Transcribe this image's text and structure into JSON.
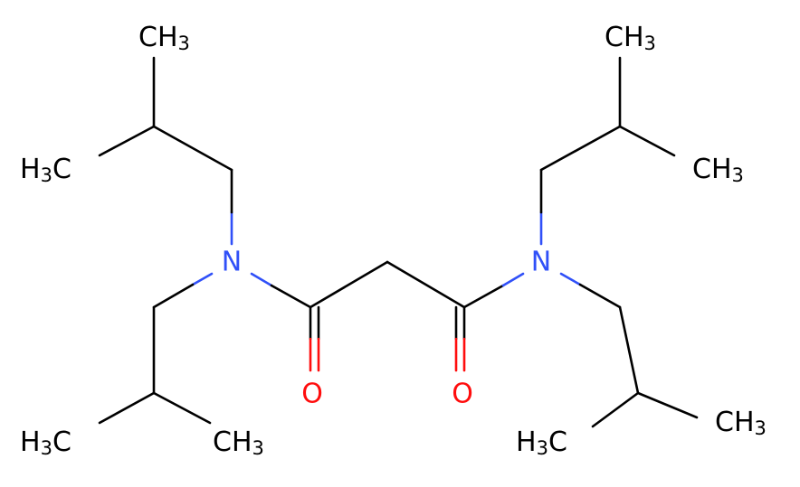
{
  "atoms": {
    "nitrogen_left": "N",
    "nitrogen_right": "N",
    "oxygen_left": "O",
    "oxygen_right": "O",
    "methyls": [
      [
        "CH",
        "3"
      ],
      [
        "H",
        "3",
        "C"
      ],
      [
        "H",
        "3",
        "C"
      ],
      [
        "CH",
        "3"
      ],
      [
        "CH",
        "3"
      ],
      [
        "CH",
        "3"
      ],
      [
        "H",
        "3",
        "C"
      ],
      [
        "CH",
        "3"
      ]
    ]
  }
}
